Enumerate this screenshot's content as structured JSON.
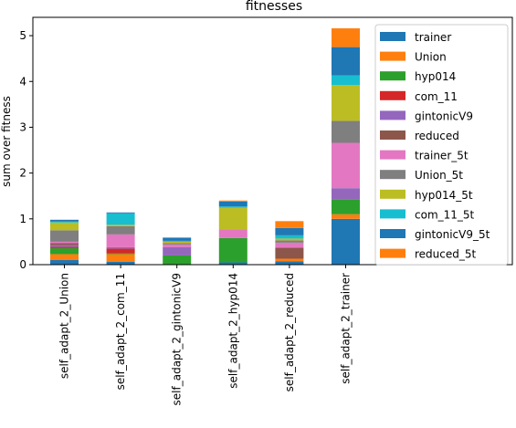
{
  "chart_data": {
    "type": "bar",
    "stacked": true,
    "title": "fitnesses",
    "xlabel": "",
    "ylabel": "sum over fitness",
    "ylim": [
      0,
      5.4
    ],
    "yticks": [
      0,
      1,
      2,
      3,
      4,
      5
    ],
    "grid": false,
    "legend_position": "top-right",
    "categories": [
      "self_adapt_2_Union",
      "self_adapt_2_com_11",
      "self_adapt_2_gintonicV9",
      "self_adapt_2_hyp014",
      "self_adapt_2_reduced",
      "self_adapt_2_trainer"
    ],
    "series": [
      {
        "name": "trainer",
        "color": "#1f77b4",
        "values": [
          0.1,
          0.06,
          0.0,
          0.05,
          0.07,
          1.0
        ]
      },
      {
        "name": "Union",
        "color": "#ff7f0e",
        "values": [
          0.13,
          0.17,
          0.0,
          0.0,
          0.06,
          0.1
        ]
      },
      {
        "name": "hyp014",
        "color": "#2ca02c",
        "values": [
          0.13,
          0.02,
          0.2,
          0.53,
          0.0,
          0.33
        ]
      },
      {
        "name": "com_11",
        "color": "#d62728",
        "values": [
          0.03,
          0.1,
          0.0,
          0.0,
          0.0,
          0.0
        ]
      },
      {
        "name": "gintonicV9",
        "color": "#9467bd",
        "values": [
          0.04,
          0.03,
          0.18,
          0.0,
          0.0,
          0.24
        ]
      },
      {
        "name": "reduced",
        "color": "#8c564b",
        "values": [
          0.04,
          0.0,
          0.0,
          0.0,
          0.24,
          0.0
        ]
      },
      {
        "name": "trainer_5t",
        "color": "#e377c2",
        "values": [
          0.03,
          0.28,
          0.06,
          0.18,
          0.11,
          0.99
        ]
      },
      {
        "name": "Union_5t",
        "color": "#7f7f7f",
        "values": [
          0.25,
          0.18,
          0.03,
          0.01,
          0.05,
          0.48
        ]
      },
      {
        "name": "hyp014_5t",
        "color": "#bcbd22",
        "values": [
          0.17,
          0.03,
          0.03,
          0.47,
          0.04,
          0.78
        ]
      },
      {
        "name": "com_11_5t",
        "color": "#17becf",
        "values": [
          0.02,
          0.25,
          0.02,
          0.03,
          0.07,
          0.21
        ]
      },
      {
        "name": "gintonicV9_5t",
        "color": "#1f77b4",
        "values": [
          0.04,
          0.02,
          0.07,
          0.11,
          0.16,
          0.62
        ]
      },
      {
        "name": "reduced_5t",
        "color": "#ff7f0e",
        "values": [
          0.0,
          0.0,
          0.0,
          0.02,
          0.15,
          0.41
        ]
      }
    ]
  }
}
